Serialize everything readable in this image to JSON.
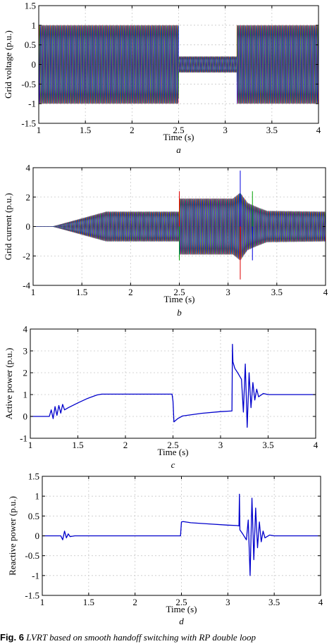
{
  "caption": {
    "label": "Fig. 6",
    "text": "LVRT based on smooth handoff switching with RP double loop"
  },
  "colors": {
    "phase_a": "#e00000",
    "phase_b": "#00a000",
    "phase_c": "#0000e0",
    "power_line": "#0000cc",
    "grid": "#c8c8c8",
    "axes": "#000000"
  },
  "chart_data": [
    {
      "id": "a",
      "type": "line",
      "sublabel": "a",
      "xlabel": "Time (s)",
      "ylabel": "Grid voltage (p.u.)",
      "xlim": [
        1,
        4
      ],
      "ylim": [
        -1.5,
        1.5
      ],
      "xticks": [
        1,
        1.5,
        2,
        2.5,
        3,
        3.5,
        4
      ],
      "yticks": [
        -1.5,
        -1,
        -0.5,
        0,
        0.5,
        1,
        1.5
      ],
      "xtick_labels": [
        "1",
        "1.5",
        "2",
        "2.5",
        "3",
        "3.5",
        "4"
      ],
      "ytick_labels": [
        "-1.5",
        "-1",
        "-0.5",
        "0",
        "0.5",
        "1",
        "1.5"
      ],
      "grid": true,
      "series": [
        {
          "phase": "a",
          "color": "#e00000"
        },
        {
          "phase": "b",
          "color": "#00a000"
        },
        {
          "phase": "c",
          "color": "#0000e0"
        }
      ],
      "amplitude_envelope": {
        "x": [
          1,
          2.5,
          2.5,
          3.125,
          3.125,
          4
        ],
        "y": [
          1,
          1,
          0.2,
          0.2,
          1,
          1
        ]
      }
    },
    {
      "id": "b",
      "type": "line",
      "sublabel": "b",
      "xlabel": "Time (s)",
      "ylabel": "Grid current (p.u.)",
      "xlim": [
        1,
        4
      ],
      "ylim": [
        -4,
        4
      ],
      "xticks": [
        1,
        1.5,
        2,
        2.5,
        3,
        3.5,
        4
      ],
      "yticks": [
        -4,
        -2,
        0,
        2,
        4
      ],
      "xtick_labels": [
        "1",
        "1.5",
        "2",
        "2.5",
        "3",
        "3.5",
        "4"
      ],
      "ytick_labels": [
        "-4",
        "-2",
        "0",
        "2",
        "4"
      ],
      "grid": true,
      "series": [
        {
          "phase": "a",
          "color": "#e00000"
        },
        {
          "phase": "b",
          "color": "#00a000"
        },
        {
          "phase": "c",
          "color": "#0000e0"
        }
      ],
      "amplitude_envelope": {
        "x": [
          1,
          1.2,
          1.75,
          2.5,
          2.5,
          3.05,
          3.125,
          3.2,
          3.3,
          3.4,
          4
        ],
        "y": [
          0,
          0,
          1,
          1,
          1.9,
          1.9,
          2.3,
          1.6,
          1.3,
          1.05,
          1
        ]
      },
      "spikes": [
        {
          "x": 2.5,
          "y": 2.4
        },
        {
          "x": 2.5,
          "y": -2.3
        },
        {
          "x": 3.125,
          "y": 3.8
        },
        {
          "x": 3.125,
          "y": -3.6
        },
        {
          "x": 3.25,
          "y": 2.4
        },
        {
          "x": 3.25,
          "y": -2.3
        }
      ]
    },
    {
      "id": "c",
      "type": "line",
      "sublabel": "c",
      "xlabel": "Time (s)",
      "ylabel": "Active power (p.u.)",
      "xlim": [
        1,
        4
      ],
      "ylim": [
        -1,
        4
      ],
      "xticks": [
        1,
        1.5,
        2,
        2.5,
        3,
        3.5,
        4
      ],
      "yticks": [
        -1,
        0,
        1,
        2,
        3,
        4
      ],
      "xtick_labels": [
        "1",
        "1.5",
        "2",
        "2.5",
        "3",
        "3.5",
        "4"
      ],
      "ytick_labels": [
        "-1",
        "0",
        "1",
        "2",
        "3",
        "4"
      ],
      "grid": true,
      "series": [
        {
          "color": "#0000cc",
          "x": [
            1,
            1.2,
            1.22,
            1.24,
            1.26,
            1.28,
            1.3,
            1.32,
            1.34,
            1.36,
            1.4,
            1.5,
            1.6,
            1.7,
            1.75,
            2,
            2.25,
            2.49,
            2.5,
            2.51,
            2.55,
            2.6,
            2.8,
            3,
            3.12,
            3.125,
            3.13,
            3.15,
            3.18,
            3.2,
            3.22,
            3.24,
            3.26,
            3.28,
            3.3,
            3.32,
            3.34,
            3.36,
            3.38,
            3.4,
            3.45,
            3.5,
            3.75,
            4
          ],
          "y": [
            0,
            0,
            0.3,
            -0.1,
            0.45,
            0.05,
            0.5,
            0.15,
            0.55,
            0.3,
            0.4,
            0.62,
            0.82,
            0.98,
            1.02,
            1.02,
            1.02,
            1.02,
            0.7,
            -0.25,
            -0.1,
            0.02,
            0.14,
            0.22,
            0.25,
            3.3,
            2.5,
            2.2,
            2.0,
            1.85,
            1.7,
            0.2,
            2.4,
            -0.5,
            2.0,
            0.4,
            1.55,
            0.75,
            1.25,
            0.9,
            1.05,
            1.0,
            1.0,
            1.0
          ]
        }
      ]
    },
    {
      "id": "d",
      "type": "line",
      "sublabel": "d",
      "xlabel": "Time (s)",
      "ylabel": "Reactive power (p.u.)",
      "xlim": [
        1,
        4
      ],
      "ylim": [
        -1.5,
        1.5
      ],
      "xticks": [
        1,
        1.5,
        2,
        2.5,
        3,
        3.5,
        4
      ],
      "yticks": [
        -1.5,
        -1,
        -0.5,
        0,
        0.5,
        1,
        1.5
      ],
      "xtick_labels": [
        "1",
        "1.5",
        "2",
        "2.5",
        "3",
        "3.5",
        "4"
      ],
      "ytick_labels": [
        "-1.5",
        "-1",
        "-0.5",
        "0",
        "0.5",
        "1",
        "1.5"
      ],
      "grid": true,
      "series": [
        {
          "color": "#0000cc",
          "x": [
            1,
            1.2,
            1.22,
            1.24,
            1.26,
            1.28,
            1.3,
            1.35,
            1.5,
            2,
            2.49,
            2.5,
            2.52,
            2.6,
            2.8,
            3,
            3.1,
            3.12,
            3.125,
            3.13,
            3.16,
            3.2,
            3.22,
            3.24,
            3.26,
            3.28,
            3.3,
            3.32,
            3.34,
            3.36,
            3.38,
            3.4,
            3.45,
            3.5,
            3.75,
            4
          ],
          "y": [
            0,
            0,
            -0.1,
            0.12,
            -0.05,
            0.05,
            -0.02,
            0,
            0,
            0,
            0,
            0.35,
            0.36,
            0.33,
            0.3,
            0.27,
            0.26,
            0.25,
            1.05,
            0.15,
            0.05,
            -0.1,
            0.4,
            -1.0,
            0.95,
            -0.6,
            0.7,
            -0.3,
            0.35,
            -0.15,
            0.12,
            -0.05,
            0.02,
            0,
            0,
            0
          ]
        }
      ]
    }
  ]
}
